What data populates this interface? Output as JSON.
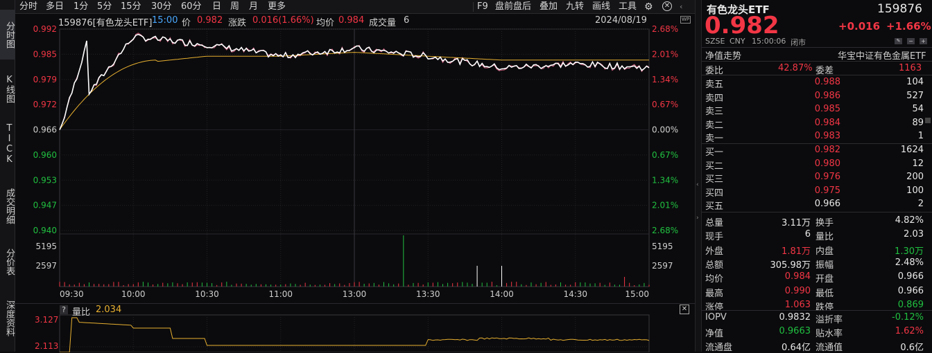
{
  "leftbar": {
    "items": [
      "分时图",
      "K线图",
      "TICK",
      "成交明细",
      "分价表",
      "深度资料"
    ]
  },
  "topbar": {
    "periods": [
      "分时",
      "多日",
      "1分",
      "5分",
      "15分",
      "30分",
      "60分",
      "日",
      "周",
      "月",
      "更多"
    ],
    "right_tools": [
      "F9",
      "盘前盘后",
      "叠加",
      "九转",
      "画线",
      "工具"
    ]
  },
  "chart": {
    "header": {
      "code_name": "159876[有色龙头ETF]",
      "time": "15:00",
      "price_label": "价",
      "price": "0.982",
      "change_label": "涨跌",
      "change": "0.016(1.66%)",
      "avg_label": "均价",
      "avg": "0.984",
      "vol_label": "成交量",
      "vol": "6",
      "date": "2024/08/19"
    },
    "left_ticks": [
      "0.992",
      "0.985",
      "0.979",
      "0.972",
      "0.966",
      "0.960",
      "0.953",
      "0.947",
      "0.940"
    ],
    "right_ticks": [
      "2.68%",
      "2.01%",
      "1.34%",
      "0.67%",
      "0.00%",
      "0.67%",
      "1.34%",
      "2.01%",
      "2.68%"
    ],
    "vol_ticks_left": [
      "5195",
      "2597"
    ],
    "vol_ticks_right": [
      "5195",
      "2597"
    ],
    "time_ticks": [
      "09:30",
      "10:00",
      "10:30",
      "11:00",
      "13:00",
      "13:30",
      "14:00",
      "14:30",
      "15:00"
    ],
    "colors": {
      "price": "#ffffff",
      "avg": "#e8b030",
      "iopv": "#d06080",
      "up": "#f23645",
      "down": "#20c040"
    }
  },
  "chart_data": {
    "type": "line",
    "title": "159876[有色龙头ETF]",
    "x": [
      "09:30",
      "10:00",
      "10:30",
      "11:00",
      "13:00",
      "13:30",
      "14:00",
      "14:30",
      "15:00"
    ],
    "series": [
      {
        "name": "价",
        "values": [
          0.966,
          0.99,
          0.988,
          0.985,
          0.987,
          0.985,
          0.982,
          0.983,
          0.982
        ]
      },
      {
        "name": "均价",
        "values": [
          0.966,
          0.983,
          0.985,
          0.985,
          0.986,
          0.985,
          0.984,
          0.984,
          0.984
        ]
      }
    ],
    "ylim": [
      0.94,
      0.992
    ],
    "prev_close": 0.966
  },
  "sub": {
    "label": "量比",
    "value": "2.034",
    "ticks": [
      "3.127",
      "2.113"
    ]
  },
  "rp": {
    "name": "有色龙头ETF",
    "code": "159876",
    "price": "0.982",
    "change": "+0.016",
    "pct": "+1.66%",
    "market": "SZSE",
    "currency": "CNY",
    "time": "15:00:06",
    "status": "闭市",
    "nav_trend": "净值走势",
    "index_name": "华宝中证有色金属ETF",
    "weibi_label": "委比",
    "weibi": "42.87%",
    "weicha_label": "委差",
    "weicha": "1163",
    "asks": [
      [
        "卖五",
        "0.988",
        "104"
      ],
      [
        "卖四",
        "0.986",
        "527"
      ],
      [
        "卖三",
        "0.985",
        "54"
      ],
      [
        "卖二",
        "0.984",
        "89"
      ],
      [
        "卖一",
        "0.983",
        "1"
      ]
    ],
    "bids": [
      [
        "买一",
        "0.982",
        "1624"
      ],
      [
        "买二",
        "0.980",
        "12"
      ],
      [
        "买三",
        "0.976",
        "200"
      ],
      [
        "买四",
        "0.975",
        "100"
      ],
      [
        "买五",
        "0.966",
        "2"
      ]
    ],
    "stats": [
      [
        "总量",
        "3.11万",
        "换手",
        "4.82%"
      ],
      [
        "现手",
        "6",
        "量比",
        "2.03"
      ],
      [
        "外盘",
        "1.81万",
        "内盘",
        "1.30万"
      ],
      [
        "总额",
        "305.98万",
        "振幅",
        "2.48%"
      ],
      [
        "均价",
        "0.984",
        "开盘",
        "0.966"
      ],
      [
        "最高",
        "0.990",
        "最低",
        "0.966"
      ],
      [
        "涨停",
        "1.063",
        "跌停",
        "0.869"
      ]
    ],
    "extra": [
      [
        "IOPV",
        "0.9832",
        "溢折率",
        "-0.12%"
      ],
      [
        "净值",
        "0.9663",
        "贴水率",
        "1.62%"
      ],
      [
        "流通盘",
        "0.64亿",
        "流通值",
        "0.6亿"
      ]
    ]
  }
}
